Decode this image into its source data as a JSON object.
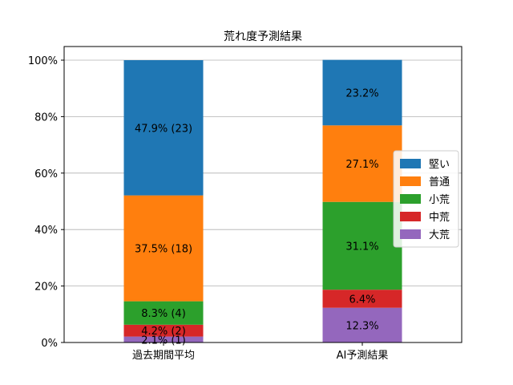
{
  "chart_data": {
    "type": "bar",
    "stacked": true,
    "title": "荒れ度予測結果",
    "xlabel": "",
    "ylabel": "",
    "categories": [
      "過去期間平均",
      "AI予測結果"
    ],
    "ylim": [
      0,
      100
    ],
    "yticks": [
      {
        "value": 0,
        "label": "0%"
      },
      {
        "value": 20,
        "label": "20%"
      },
      {
        "value": 40,
        "label": "40%"
      },
      {
        "value": 60,
        "label": "60%"
      },
      {
        "value": 80,
        "label": "80%"
      },
      {
        "value": 100,
        "label": "100%"
      }
    ],
    "grid": "horizontal",
    "legend_position": "right",
    "series": [
      {
        "name": "大荒",
        "color": "#9467bd",
        "values": [
          2.1,
          12.3
        ],
        "labels": [
          "2.1% (1)",
          "12.3%"
        ]
      },
      {
        "name": "中荒",
        "color": "#d62728",
        "values": [
          4.2,
          6.4
        ],
        "labels": [
          "4.2% (2)",
          "6.4%"
        ]
      },
      {
        "name": "小荒",
        "color": "#2ca02c",
        "values": [
          8.3,
          31.1
        ],
        "labels": [
          "8.3% (4)",
          "31.1%"
        ]
      },
      {
        "name": "普通",
        "color": "#ff7f0e",
        "values": [
          37.5,
          27.1
        ],
        "labels": [
          "37.5% (18)",
          "27.1%"
        ]
      },
      {
        "name": "堅い",
        "color": "#1f77b4",
        "values": [
          47.9,
          23.2
        ],
        "labels": [
          "47.9% (23)",
          "23.2%"
        ]
      }
    ],
    "legend_order": [
      "堅い",
      "普通",
      "小荒",
      "中荒",
      "大荒"
    ]
  }
}
